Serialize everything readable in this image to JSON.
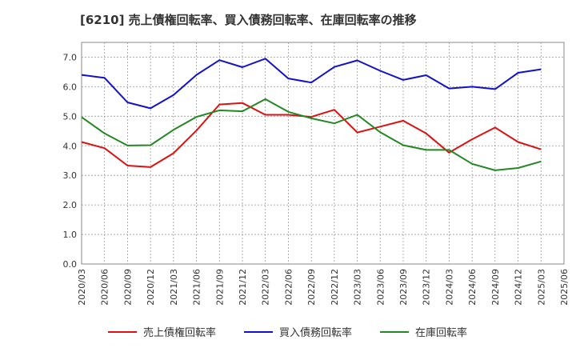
{
  "chart_data": {
    "type": "line",
    "title": "[6210]  売上債権回転率、買入債務回転率、在庫回転率の推移",
    "xlabel": "",
    "ylabel": "",
    "ylim": [
      0,
      7.5
    ],
    "yticks": [
      "0.0",
      "1.0",
      "2.0",
      "3.0",
      "4.0",
      "5.0",
      "6.0",
      "7.0"
    ],
    "categories": [
      "2020/03",
      "2020/06",
      "2020/09",
      "2020/12",
      "2021/03",
      "2021/06",
      "2021/09",
      "2021/12",
      "2022/03",
      "2022/06",
      "2022/09",
      "2022/12",
      "2023/03",
      "2023/06",
      "2023/09",
      "2023/12",
      "2024/03",
      "2024/06",
      "2024/09",
      "2024/12",
      "2025/03",
      "2025/06"
    ],
    "grid": true,
    "legend_position": "bottom",
    "series": [
      {
        "name": "売上債権回転率",
        "color": "#dd1111",
        "values": [
          4.13,
          3.92,
          3.33,
          3.28,
          3.75,
          4.52,
          5.4,
          5.45,
          5.05,
          5.05,
          4.98,
          5.22,
          4.45,
          4.65,
          4.85,
          4.42,
          3.77,
          4.22,
          4.62,
          4.13,
          3.88,
          null
        ]
      },
      {
        "name": "買入債務回転率",
        "color": "#1111cc",
        "values": [
          6.4,
          6.3,
          5.47,
          5.27,
          5.72,
          6.4,
          6.9,
          6.66,
          6.95,
          6.28,
          6.14,
          6.67,
          6.89,
          6.54,
          6.23,
          6.39,
          5.94,
          6.0,
          5.92,
          6.47,
          6.59,
          null
        ]
      },
      {
        "name": "在庫回転率",
        "color": "#228822",
        "values": [
          4.97,
          4.42,
          4.01,
          4.02,
          4.54,
          4.98,
          5.2,
          5.17,
          5.58,
          5.15,
          4.93,
          4.76,
          5.05,
          4.46,
          4.02,
          3.86,
          3.86,
          3.39,
          3.17,
          3.25,
          3.47,
          null
        ]
      }
    ]
  }
}
